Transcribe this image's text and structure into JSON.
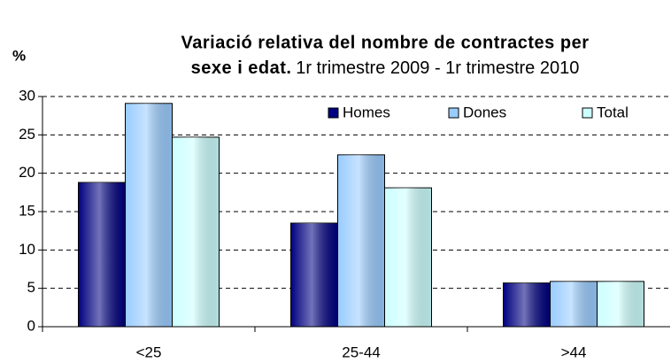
{
  "chart_data": {
    "type": "bar",
    "title": "Variació relativa del nombre de contractes per",
    "title_line2": "sexe i edat.",
    "subtitle": "1r trimestre 2009 - 1r trimestre 2010",
    "y_label": "%",
    "categories": [
      "<25",
      "25-44",
      ">44"
    ],
    "series": [
      {
        "name": "Homes",
        "color": "#000080",
        "values": [
          18.8,
          13.5,
          5.7
        ]
      },
      {
        "name": "Dones",
        "color": "#99ccff",
        "values": [
          29.1,
          22.4,
          5.9
        ]
      },
      {
        "name": "Total",
        "color": "#ccffff",
        "values": [
          24.7,
          18.1,
          5.9
        ]
      }
    ],
    "ylim": [
      0,
      30
    ],
    "yticks": [
      0,
      5,
      10,
      15,
      20,
      25,
      30
    ],
    "grid": true,
    "legend": "top-right"
  }
}
